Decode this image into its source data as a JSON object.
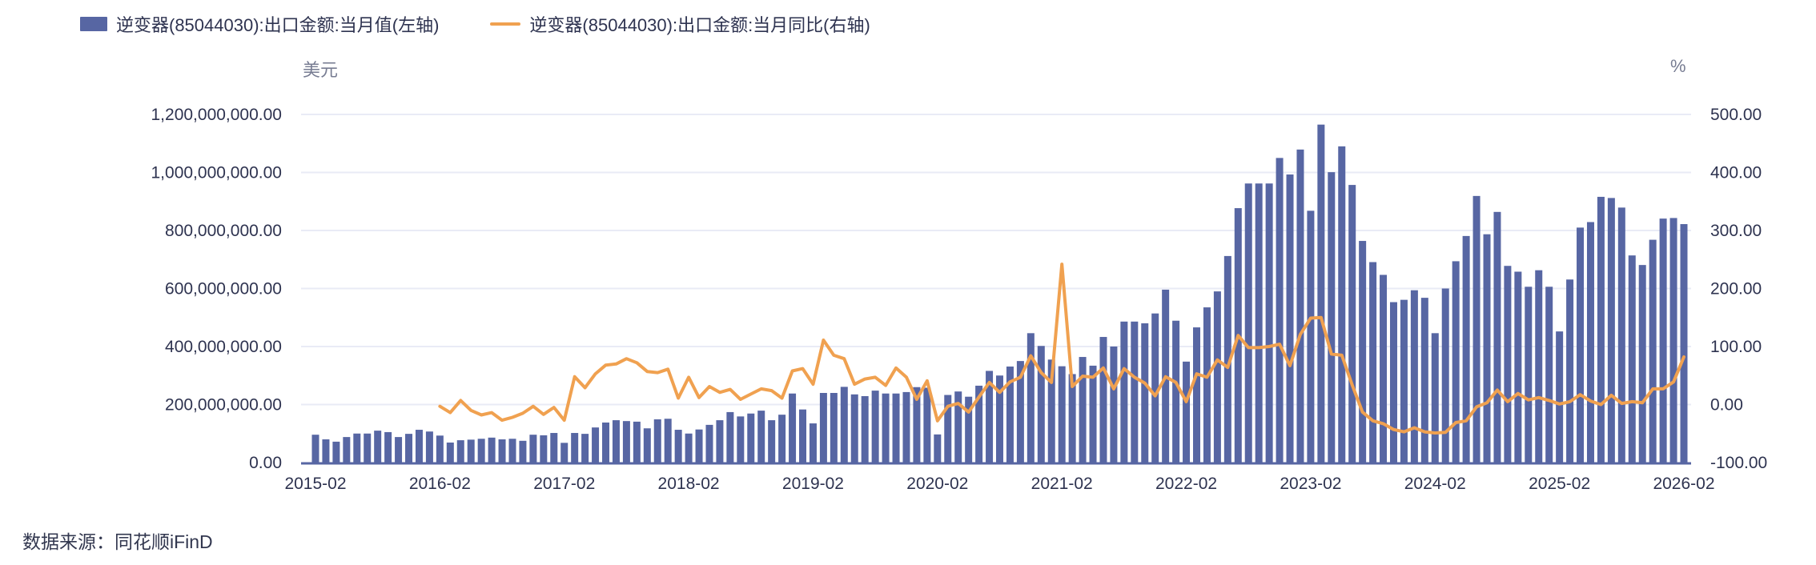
{
  "legend": {
    "bar_label": "逆变器(85044030):出口金额:当月值(左轴)",
    "line_label": "逆变器(85044030):出口金额:当月同比(右轴)"
  },
  "footer": {
    "source": "数据来源：同花顺iFinD"
  },
  "colors": {
    "bar": "#5766a3",
    "line": "#f0a150",
    "grid": "#e9ebf6",
    "axis_line": "#5766a3",
    "text": "#2e3350",
    "unit_text": "#777c92"
  },
  "chart_data": {
    "type": "bar",
    "subtype": "combo-bar-line-dual-axis",
    "title": "",
    "xlabel": "",
    "ylabel_left": "美元",
    "ylabel_right": "%",
    "grid": true,
    "legend_position": "top-left",
    "categories": [
      "2015-02",
      "2015-03",
      "2015-04",
      "2015-05",
      "2015-06",
      "2015-07",
      "2015-08",
      "2015-09",
      "2015-10",
      "2015-11",
      "2015-12",
      "2016-01",
      "2016-02",
      "2016-03",
      "2016-04",
      "2016-05",
      "2016-06",
      "2016-07",
      "2016-08",
      "2016-09",
      "2016-10",
      "2016-11",
      "2016-12",
      "2017-01",
      "2017-02",
      "2017-03",
      "2017-04",
      "2017-05",
      "2017-06",
      "2017-07",
      "2017-08",
      "2017-09",
      "2017-10",
      "2017-11",
      "2017-12",
      "2018-01",
      "2018-02",
      "2018-03",
      "2018-04",
      "2018-05",
      "2018-06",
      "2018-07",
      "2018-08",
      "2018-09",
      "2018-10",
      "2018-11",
      "2018-12",
      "2019-01",
      "2019-02",
      "2019-03",
      "2019-04",
      "2019-05",
      "2019-06",
      "2019-07",
      "2019-08",
      "2019-09",
      "2019-10",
      "2019-11",
      "2019-12",
      "2020-01",
      "2020-02",
      "2020-03",
      "2020-04",
      "2020-05",
      "2020-06",
      "2020-07",
      "2020-08",
      "2020-09",
      "2020-10",
      "2020-11",
      "2020-12",
      "2021-01",
      "2021-02",
      "2021-03",
      "2021-04",
      "2021-05",
      "2021-06",
      "2021-07",
      "2021-08",
      "2021-09",
      "2021-10",
      "2021-11",
      "2021-12",
      "2022-01",
      "2022-02",
      "2022-03",
      "2022-04",
      "2022-05",
      "2022-06",
      "2022-07",
      "2022-08",
      "2022-09",
      "2022-10",
      "2022-11",
      "2022-12",
      "2023-01",
      "2023-02",
      "2023-03",
      "2023-04",
      "2023-05",
      "2023-06",
      "2023-07",
      "2023-08",
      "2023-09",
      "2023-10",
      "2023-11",
      "2023-12",
      "2024-01",
      "2024-02",
      "2024-03",
      "2024-04",
      "2024-05",
      "2024-06",
      "2024-07",
      "2024-08",
      "2024-09",
      "2024-10",
      "2024-11",
      "2024-12",
      "2025-01",
      "2025-02",
      "2025-03",
      "2025-04",
      "2025-05",
      "2025-06",
      "2025-07",
      "2025-08",
      "2025-09",
      "2025-10",
      "2025-11",
      "2025-12",
      "2026-01",
      "2026-02"
    ],
    "series": [
      {
        "name": "逆变器(85044030):出口金额:当月值(左轴)",
        "type": "bar",
        "axis": "left",
        "unit": "美元",
        "color": "#5766a3",
        "values": [
          96000000,
          80000000,
          72000000,
          88000000,
          100000000,
          100000000,
          110000000,
          105000000,
          88000000,
          99000000,
          113000000,
          107000000,
          93000000,
          69000000,
          77000000,
          79000000,
          82000000,
          86000000,
          80000000,
          82000000,
          75000000,
          96000000,
          94000000,
          102000000,
          68000000,
          102000000,
          99000000,
          121000000,
          138000000,
          146000000,
          143000000,
          141000000,
          118000000,
          149000000,
          151000000,
          113000000,
          100000000,
          114000000,
          130000000,
          146000000,
          174000000,
          159000000,
          169000000,
          179000000,
          146000000,
          165000000,
          238000000,
          183000000,
          135000000,
          240000000,
          240000000,
          261000000,
          235000000,
          229000000,
          248000000,
          238000000,
          238000000,
          243000000,
          260000000,
          258000000,
          97000000,
          233000000,
          245000000,
          227000000,
          265000000,
          316000000,
          300000000,
          331000000,
          350000000,
          446000000,
          402000000,
          355000000,
          332000000,
          305000000,
          364000000,
          334000000,
          433000000,
          400000000,
          486000000,
          486000000,
          480000000,
          514000000,
          596000000,
          489000000,
          348000000,
          466000000,
          535000000,
          590000000,
          712000000,
          877000000,
          962000000,
          962000000,
          962000000,
          1050000000,
          993000000,
          1079000000,
          868000000,
          1165000000,
          1001000000,
          1090000000,
          957000000,
          764000000,
          691000000,
          647000000,
          553000000,
          561000000,
          594000000,
          568000000,
          446000000,
          600000000,
          694000000,
          781000000,
          919000000,
          787000000,
          864000000,
          678000000,
          658000000,
          606000000,
          663000000,
          606000000,
          452000000,
          631000000,
          810000000,
          829000000,
          916000000,
          912000000,
          879000000,
          714000000,
          681000000,
          768000000,
          841000000,
          843000000,
          822000000
        ]
      },
      {
        "name": "逆变器(85044030):出口金额:当月同比(右轴)",
        "type": "line",
        "axis": "right",
        "unit": "%",
        "color": "#f0a150",
        "values": [
          null,
          null,
          null,
          null,
          null,
          null,
          null,
          null,
          null,
          null,
          null,
          null,
          -3,
          -14,
          7,
          -10,
          -18,
          -14,
          -27,
          -22,
          -15,
          -3,
          -17,
          -5,
          -27,
          48,
          29,
          53,
          68,
          70,
          79,
          72,
          57,
          55,
          61,
          11,
          47,
          12,
          31,
          21,
          26,
          9,
          18,
          27,
          24,
          11,
          58,
          62,
          35,
          111,
          85,
          79,
          35,
          44,
          47,
          33,
          63,
          47,
          9,
          41,
          -28,
          -3,
          2,
          -13,
          13,
          38,
          21,
          39,
          47,
          84,
          55,
          38,
          242,
          31,
          49,
          47,
          63,
          27,
          62,
          47,
          37,
          15,
          48,
          38,
          5,
          53,
          47,
          77,
          64,
          119,
          98,
          98,
          100,
          104,
          67,
          121,
          149,
          150,
          87,
          85,
          34,
          -13,
          -28,
          -33,
          -43,
          -47,
          -40,
          -47,
          -49,
          -48,
          -31,
          -28,
          -4,
          3,
          25,
          5,
          19,
          8,
          12,
          7,
          1,
          5,
          17,
          6,
          0,
          16,
          2,
          5,
          3,
          27,
          27,
          39,
          82
        ]
      }
    ],
    "left_axis": {
      "label": "美元",
      "min": 0,
      "max": 1200000000,
      "tick_step": 200000000,
      "tick_values": [
        1200000000,
        1000000000,
        800000000,
        600000000,
        400000000,
        200000000,
        0
      ],
      "tick_labels": [
        "1,200,000,000.00",
        "1,000,000,000.00",
        "800,000,000.00",
        "600,000,000.00",
        "400,000,000.00",
        "200,000,000.00",
        "0.00"
      ]
    },
    "right_axis": {
      "label": "%",
      "min": -100,
      "max": 500,
      "tick_step": 100,
      "tick_values": [
        500,
        400,
        300,
        200,
        100,
        0,
        -100
      ],
      "tick_labels": [
        "500.00",
        "400.00",
        "300.00",
        "200.00",
        "100.00",
        "0.00",
        "-100.00"
      ]
    },
    "x_tick_every": 12,
    "x_tick_labels": [
      "2015-02",
      "2016-02",
      "2017-02",
      "2018-02",
      "2019-02",
      "2020-02",
      "2021-02",
      "2022-02",
      "2023-02",
      "2024-02",
      "2025-02",
      "2026-02"
    ]
  }
}
